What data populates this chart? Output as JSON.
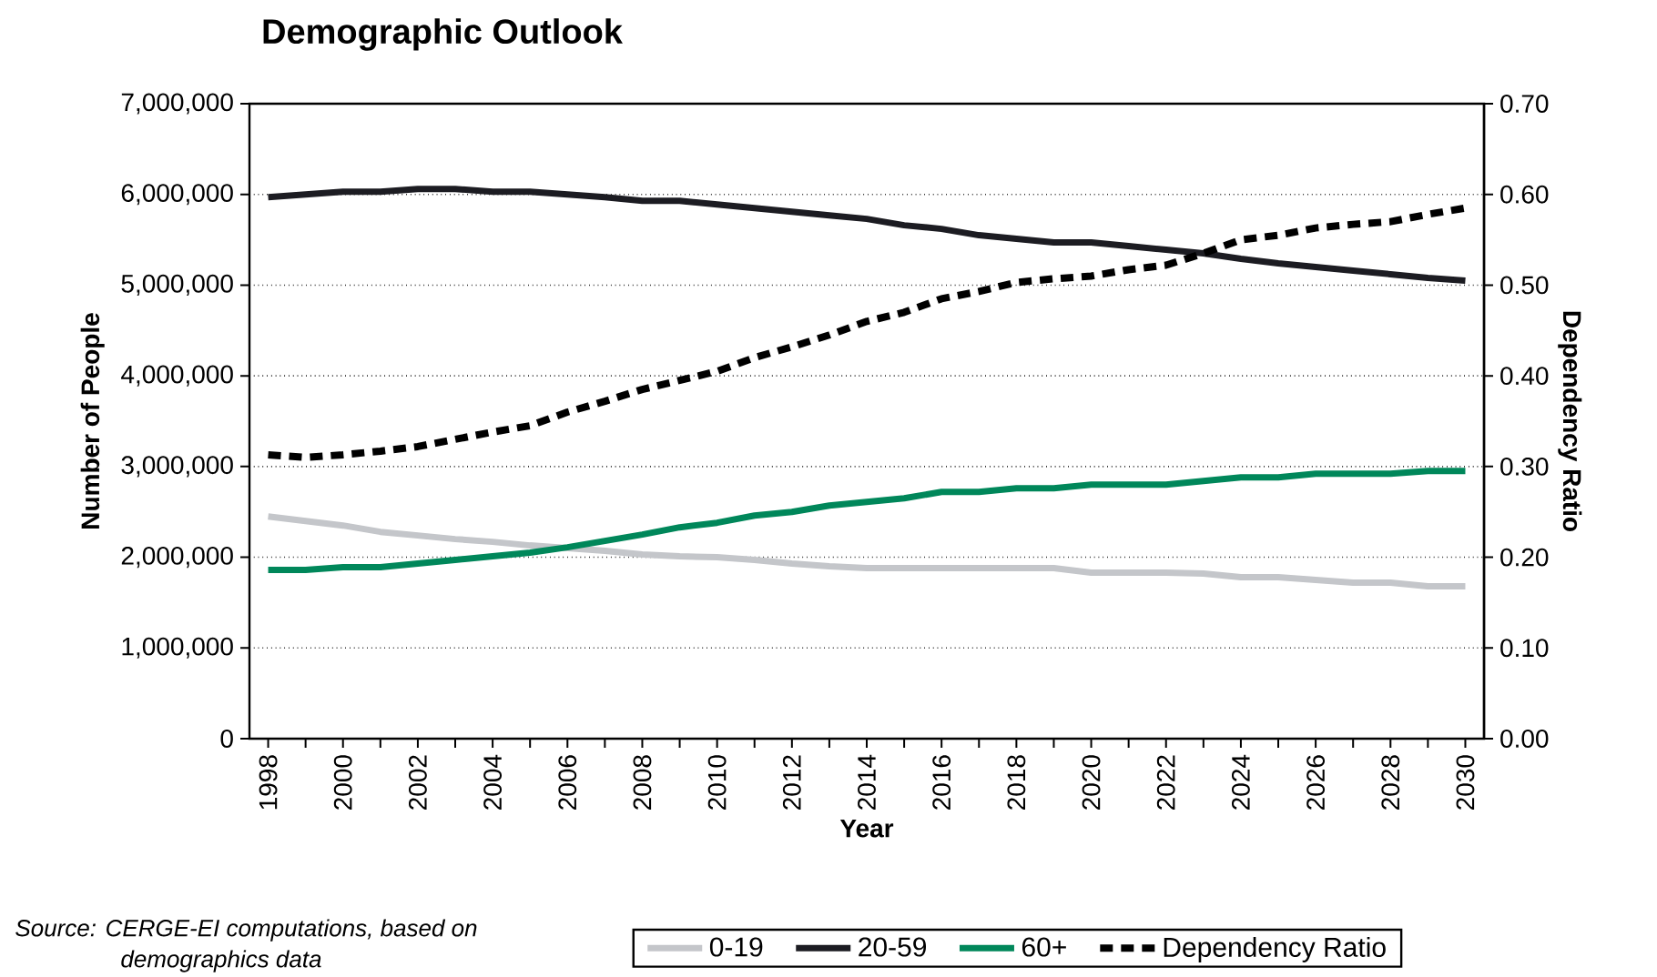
{
  "chart_data": {
    "type": "line",
    "title": "Demographic Outlook",
    "xlabel": "Year",
    "ylabel": "Number of People",
    "y2label": "Dependency Ratio",
    "x": [
      1998,
      1999,
      2000,
      2001,
      2002,
      2003,
      2004,
      2005,
      2006,
      2007,
      2008,
      2009,
      2010,
      2011,
      2012,
      2013,
      2014,
      2015,
      2016,
      2017,
      2018,
      2019,
      2020,
      2021,
      2022,
      2023,
      2024,
      2025,
      2026,
      2027,
      2028,
      2029,
      2030
    ],
    "xlim": [
      1997.5,
      2030.5
    ],
    "xticks": [
      1998,
      {
        "value": 1999,
        "label": null
      },
      2000,
      {
        "value": 2001,
        "label": null
      },
      2002,
      {
        "value": 2003,
        "label": null
      },
      2004,
      {
        "value": 2005,
        "label": null
      },
      2006,
      {
        "value": 2007,
        "label": null
      },
      2008,
      {
        "value": 2009,
        "label": null
      },
      2010,
      {
        "value": 2011,
        "label": null
      },
      2012,
      {
        "value": 2013,
        "label": null
      },
      2014,
      {
        "value": 2015,
        "label": null
      },
      2016,
      {
        "value": 2017,
        "label": null
      },
      2018,
      {
        "value": 2019,
        "label": null
      },
      2020,
      {
        "value": 2021,
        "label": null
      },
      2022,
      {
        "value": 2023,
        "label": null
      },
      2024,
      {
        "value": 2025,
        "label": null
      },
      2026,
      {
        "value": 2027,
        "label": null
      },
      2028,
      {
        "value": 2029,
        "label": null
      },
      2030
    ],
    "ylim": [
      0,
      7000000
    ],
    "yticks": [
      0,
      {
        "value": 1000000,
        "label": "1,000,000"
      },
      {
        "value": 2000000,
        "label": "2,000,000"
      },
      {
        "value": 3000000,
        "label": "3,000,000"
      },
      {
        "value": 4000000,
        "label": "4,000,000"
      },
      {
        "value": 5000000,
        "label": "5,000,000"
      },
      {
        "value": 6000000,
        "label": "6,000,000"
      },
      {
        "value": 7000000,
        "label": "7,000,000"
      }
    ],
    "y2lim": [
      0,
      0.7
    ],
    "y2ticks": [
      {
        "value": 0,
        "label": "0.00"
      },
      {
        "value": 0.1,
        "label": "0.10"
      },
      {
        "value": 0.2,
        "label": "0.20"
      },
      {
        "value": 0.3,
        "label": "0.30"
      },
      {
        "value": 0.4,
        "label": "0.40"
      },
      {
        "value": 0.5,
        "label": "0.50"
      },
      {
        "value": 0.6,
        "label": "0.60"
      },
      {
        "value": 0.7,
        "label": "0.70"
      }
    ],
    "grid": "y",
    "legend": "bottom",
    "marker": "none",
    "series": [
      {
        "name": "0-19",
        "color": "#c4c6ca",
        "line_style": "solid",
        "values": [
          2450000,
          2400000,
          2350000,
          2280000,
          2240000,
          2200000,
          2170000,
          2130000,
          2100000,
          2070000,
          2030000,
          2010000,
          2000000,
          1970000,
          1930000,
          1900000,
          1880000,
          1880000,
          1880000,
          1880000,
          1880000,
          1880000,
          1830000,
          1830000,
          1830000,
          1820000,
          1780000,
          1780000,
          1750000,
          1720000,
          1720000,
          1680000,
          1680000
        ]
      },
      {
        "name": "20-59",
        "color": "#1c1c22",
        "line_style": "solid",
        "values": [
          5970000,
          6000000,
          6030000,
          6030000,
          6060000,
          6060000,
          6030000,
          6030000,
          6000000,
          5970000,
          5930000,
          5930000,
          5890000,
          5850000,
          5810000,
          5770000,
          5730000,
          5660000,
          5620000,
          5550000,
          5510000,
          5470000,
          5470000,
          5430000,
          5390000,
          5350000,
          5290000,
          5240000,
          5200000,
          5160000,
          5120000,
          5080000,
          5050000
        ]
      },
      {
        "name": "60+",
        "color": "#00875a",
        "line_style": "solid",
        "values": [
          1860000,
          1860000,
          1890000,
          1890000,
          1930000,
          1970000,
          2010000,
          2050000,
          2110000,
          2180000,
          2250000,
          2330000,
          2380000,
          2460000,
          2500000,
          2570000,
          2610000,
          2650000,
          2720000,
          2720000,
          2760000,
          2760000,
          2800000,
          2800000,
          2800000,
          2840000,
          2880000,
          2880000,
          2920000,
          2920000,
          2920000,
          2950000,
          2950000
        ]
      },
      {
        "name": "Dependency Ratio",
        "color": "#000000",
        "line_style": "dashed",
        "axis": "y2",
        "values": [
          0.313,
          0.31,
          0.313,
          0.317,
          0.322,
          0.33,
          0.338,
          0.345,
          0.36,
          0.372,
          0.385,
          0.395,
          0.405,
          0.42,
          0.432,
          0.445,
          0.46,
          0.47,
          0.485,
          0.493,
          0.503,
          0.507,
          0.51,
          0.517,
          0.522,
          0.535,
          0.55,
          0.555,
          0.563,
          0.567,
          0.57,
          0.578,
          0.585
        ]
      }
    ],
    "annotations": [
      "Source: CERGE-EI computations, based on demographics data"
    ]
  }
}
